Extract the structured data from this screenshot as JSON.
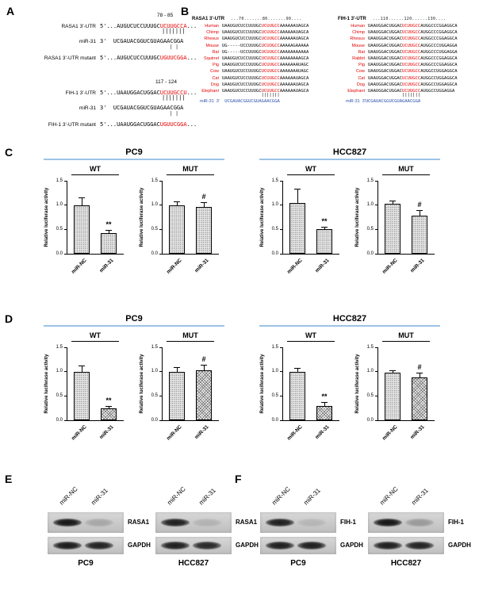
{
  "panel_labels": {
    "a": "A",
    "b": "B",
    "c": "C",
    "d": "D",
    "e": "E",
    "f": "F"
  },
  "panel_a": {
    "rasa1": {
      "position": "78 - 85",
      "utr_label": "RASA1 3'-UTR",
      "utr_pre": "5'...AUGUCUCCUUUGC",
      "utr_seed": "UCUUGCCA",
      "utr_post": "...",
      "pairing": "|||||||",
      "mir_label": "miR-31",
      "mir_seq": "3'  UCGAUACGGUCGUAGAACGGA",
      "pairing2": "| |",
      "mut_label": "RASA1 3'-UTR mutant",
      "mut_pre": "5'...AUGUCUCCUUUGC",
      "mut_seed": "UGUUCGGA",
      "mut_post": "..."
    },
    "fih1": {
      "position": "117 - 124",
      "utr_label": "FIH-1 3'-UTR",
      "utr_pre": "5'...UAAUGGACUGGAC",
      "utr_seed": "UCUUGCCU",
      "utr_post": "...",
      "pairing": "|||||||",
      "mir_label": "miR-31",
      "mir_seq": "3'  UCGAUACGGUCGUAGAACGGA",
      "pairing2": "| |",
      "mut_label": "FIH-1 3'-UTR mutant",
      "mut_pre": "5'...UAAUGGACUGGAC",
      "mut_seed": "UGUUCGGA",
      "mut_post": "..."
    }
  },
  "panel_b": {
    "left": {
      "title": "RASA1 3'-UTR",
      "ruler": "...70.......80.......90....",
      "pairing": "|||||||",
      "mir_label": "miR-31  3'",
      "mir_seq": "UCGAUACGGUCGUAGAACGGA",
      "rows": [
        {
          "species": "Human",
          "pre": "UAAUGUCUCCUUUGC",
          "seed": "UCUUGCC",
          "post": "AAAAAAUAGCA"
        },
        {
          "species": "Chimp",
          "pre": "UAAUGUCUCCUUUGC",
          "seed": "UCUUGCC",
          "post": "AAAAAAUAGCA"
        },
        {
          "species": "Rhesus",
          "pre": "UAAUGUCUCCUUUGC",
          "seed": "UCUUGCC",
          "post": "AAAAAAUAGCA"
        },
        {
          "species": "Mouse",
          "pre": "UG-----UCCUUUGC",
          "seed": "UCUUGCC",
          "post": "AAAAAGAAAAA"
        },
        {
          "species": "Rat",
          "pre": "UG-----UCCUUUGC",
          "seed": "UCUUGCC",
          "post": "AAAAAAAAAAA"
        },
        {
          "species": "Squirrel",
          "pre": "UAAUGUCUCCUUUGC",
          "seed": "UCUUGCC",
          "post": "AAAAAAAAGCA"
        },
        {
          "species": "Pig",
          "pre": "UAAUGUCUCCUUUGC",
          "seed": "UCUUGCC",
          "post": "AAAAAAAUAGC"
        },
        {
          "species": "Cow",
          "pre": "UAAUGUCUCCUUUGC",
          "seed": "UCUUGCC",
          "post": "AAAAAAAUAGC"
        },
        {
          "species": "Cat",
          "pre": "UAAUGUCUCCUUUGC",
          "seed": "UCUUGCC",
          "post": "AAAAAAUAGCA"
        },
        {
          "species": "Dog",
          "pre": "UAAUGUCUCCUUUGC",
          "seed": "UCUUGCC",
          "post": "AAAAAAUAGCA"
        },
        {
          "species": "Elephant",
          "pre": "UAAUGUCUCCUUUGC",
          "seed": "UCUUGCC",
          "post": "AAAAAAUAGCA"
        }
      ]
    },
    "right": {
      "title": "FIH-1 3'-UTR",
      "ruler": "...110......120......130....",
      "pairing": "|||||||",
      "mir_label": "miR-31  3'",
      "mir_seq": "UCGAUACGGUCGUAGAACGGA",
      "rows": [
        {
          "species": "Human",
          "pre": "UAAUGGACUGGAC",
          "seed": "UCUUGCC",
          "post": "AUGGCCCGGAGGCA"
        },
        {
          "species": "Chimp",
          "pre": "UAAUGGACUGGAC",
          "seed": "UCUUGCC",
          "post": "AUGGCCCGGAGGCA"
        },
        {
          "species": "Rhesus",
          "pre": "UAAUGGACUGGAC",
          "seed": "UCUUGCC",
          "post": "AUGGCCCGGAGGCA"
        },
        {
          "species": "Mouse",
          "pre": "UAAUGGACUGGAC",
          "seed": "UCUUGCC",
          "post": "AUGGCCCUGGAGGA"
        },
        {
          "species": "Rat",
          "pre": "UAAUGGACUGGAC",
          "seed": "UCUUGCC",
          "post": "AUGGCCCUGGAGGA"
        },
        {
          "species": "Rabbit",
          "pre": "UAAUGGACUGGAC",
          "seed": "UCUUGCC",
          "post": "AUGGCCCGGAGGCA"
        },
        {
          "species": "Pig",
          "pre": "UAAUGGACUGGAC",
          "seed": "UCUUGCC",
          "post": "AUGGCCCGGAGGCA"
        },
        {
          "species": "Cow",
          "pre": "UAAUGGACUGGAC",
          "seed": "UCUUGCC",
          "post": "AUGGCCUGGAGGCA"
        },
        {
          "species": "Cat",
          "pre": "UAAUGGACUGGAC",
          "seed": "UCUUGCC",
          "post": "AUGGCCUGGAGGCA"
        },
        {
          "species": "Dog",
          "pre": "UAAUGGACUGGAC",
          "seed": "UCUUGCC",
          "post": "AUGGCCUGGAGGCA"
        },
        {
          "species": "Elephant",
          "pre": "UAAUGGACUGGAC",
          "seed": "UCUUGCC",
          "post": "AUGGCCUGGAGGA"
        }
      ]
    }
  },
  "group_headers": [
    {
      "label": "PC9"
    },
    {
      "label": "HCC827"
    },
    {
      "label": "PC9"
    },
    {
      "label": "HCC827"
    }
  ],
  "chart_data": [
    {
      "type": "bar",
      "panel": "C",
      "group": "PC9",
      "title": "WT",
      "ylabel": "Relative luciferase activity",
      "ylim": [
        0,
        1.5
      ],
      "yticks": [
        "0.0",
        "0.5",
        "1.0",
        "1.5"
      ],
      "categories": [
        "miR-NC",
        "miR-31"
      ],
      "values": [
        1.0,
        0.42
      ],
      "errors": [
        0.15,
        0.07
      ],
      "patterns": [
        "dots",
        "dots"
      ],
      "sig": [
        "",
        "**"
      ]
    },
    {
      "type": "bar",
      "panel": "C",
      "group": "PC9",
      "title": "MUT",
      "ylabel": "Relative luciferase activity",
      "ylim": [
        0,
        1.5
      ],
      "yticks": [
        "0.0",
        "0.5",
        "1.0",
        "1.5"
      ],
      "categories": [
        "miR-NC",
        "miR-31"
      ],
      "values": [
        1.0,
        0.96
      ],
      "errors": [
        0.07,
        0.1
      ],
      "patterns": [
        "dots",
        "dots"
      ],
      "sig": [
        "",
        "#"
      ]
    },
    {
      "type": "bar",
      "panel": "C",
      "group": "HCC827",
      "title": "WT",
      "ylabel": "Relative luciferase activity",
      "ylim": [
        0,
        1.5
      ],
      "yticks": [
        "0.0",
        "0.5",
        "1.0",
        "1.5"
      ],
      "categories": [
        "miR-NC",
        "miR-31"
      ],
      "values": [
        1.05,
        0.5
      ],
      "errors": [
        0.28,
        0.06
      ],
      "patterns": [
        "dots",
        "dots"
      ],
      "sig": [
        "",
        "**"
      ]
    },
    {
      "type": "bar",
      "panel": "C",
      "group": "HCC827",
      "title": "MUT",
      "ylabel": "Relative luciferase activity",
      "ylim": [
        0,
        1.5
      ],
      "yticks": [
        "0.0",
        "0.5",
        "1.0",
        "1.5"
      ],
      "categories": [
        "miR-NC",
        "miR-31"
      ],
      "values": [
        1.03,
        0.78
      ],
      "errors": [
        0.07,
        0.12
      ],
      "patterns": [
        "dots",
        "dots"
      ],
      "sig": [
        "",
        "#"
      ]
    },
    {
      "type": "bar",
      "panel": "D",
      "group": "PC9",
      "title": "WT",
      "ylabel": "Relative luciferase activity",
      "ylim": [
        0,
        1.5
      ],
      "yticks": [
        "0.0",
        "0.5",
        "1.0",
        "1.5"
      ],
      "categories": [
        "miR-NC",
        "miR-31"
      ],
      "values": [
        1.0,
        0.25
      ],
      "errors": [
        0.12,
        0.04
      ],
      "patterns": [
        "dots",
        "cross"
      ],
      "sig": [
        "",
        "**"
      ]
    },
    {
      "type": "bar",
      "panel": "D",
      "group": "PC9",
      "title": "MUT",
      "ylabel": "Relative luciferase activity",
      "ylim": [
        0,
        1.5
      ],
      "yticks": [
        "0.0",
        "0.5",
        "1.0",
        "1.5"
      ],
      "categories": [
        "miR-NC",
        "miR-31"
      ],
      "values": [
        1.0,
        1.02
      ],
      "errors": [
        0.1,
        0.12
      ],
      "patterns": [
        "dots",
        "cross"
      ],
      "sig": [
        "",
        "#"
      ]
    },
    {
      "type": "bar",
      "panel": "D",
      "group": "HCC827",
      "title": "WT",
      "ylabel": "Relative luciferase activity",
      "ylim": [
        0,
        1.5
      ],
      "yticks": [
        "0.0",
        "0.5",
        "1.0",
        "1.5"
      ],
      "categories": [
        "miR-NC",
        "miR-31"
      ],
      "values": [
        1.0,
        0.3
      ],
      "errors": [
        0.08,
        0.07
      ],
      "patterns": [
        "dots",
        "cross"
      ],
      "sig": [
        "",
        "**"
      ]
    },
    {
      "type": "bar",
      "panel": "D",
      "group": "HCC827",
      "title": "MUT",
      "ylabel": "Relative luciferase activity",
      "ylim": [
        0,
        1.5
      ],
      "yticks": [
        "0.0",
        "0.5",
        "1.0",
        "1.5"
      ],
      "categories": [
        "miR-NC",
        "miR-31"
      ],
      "values": [
        0.98,
        0.88
      ],
      "errors": [
        0.05,
        0.1
      ],
      "patterns": [
        "dots",
        "cross"
      ],
      "sig": [
        "",
        "#"
      ]
    }
  ],
  "blots": [
    {
      "panel": "E",
      "cell": "PC9",
      "col_labels": [
        "miR-NC",
        "miR-31"
      ],
      "rows": [
        {
          "label": "RASA1",
          "bands": [
            0.95,
            0.18
          ]
        },
        {
          "label": "GAPDH",
          "bands": [
            0.92,
            0.88
          ]
        }
      ]
    },
    {
      "panel": "E",
      "cell": "HCC827",
      "col_labels": [
        "miR-NC",
        "miR-31"
      ],
      "rows": [
        {
          "label": "RASA1",
          "bands": [
            0.9,
            0.12
          ]
        },
        {
          "label": "GAPDH",
          "bands": [
            0.9,
            0.85
          ]
        }
      ]
    },
    {
      "panel": "F",
      "cell": "PC9",
      "col_labels": [
        "miR-NC",
        "miR-31"
      ],
      "rows": [
        {
          "label": "FIH-1",
          "bands": [
            0.9,
            0.1
          ]
        },
        {
          "label": "GAPDH",
          "bands": [
            0.9,
            0.9
          ]
        }
      ]
    },
    {
      "panel": "F",
      "cell": "HCC827",
      "col_labels": [
        "miR-NC",
        "miR-31"
      ],
      "rows": [
        {
          "label": "FIH-1",
          "bands": [
            0.95,
            0.25
          ]
        },
        {
          "label": "GAPDH",
          "bands": [
            0.9,
            0.88
          ]
        }
      ]
    }
  ]
}
